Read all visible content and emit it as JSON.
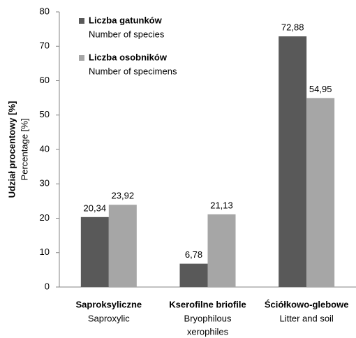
{
  "chart_data": {
    "type": "bar",
    "ylabel": "Udział procentowy [%]",
    "ylabel_en": "Percentage [%]",
    "categories": [
      "Saproksyliczne",
      "Kserofilne briofile",
      "Ściółkowo-glebowe"
    ],
    "categories_en": [
      [
        "Saproxylic"
      ],
      [
        "Bryophilous",
        "xerophiles"
      ],
      [
        "Litter and soil"
      ]
    ],
    "series": [
      {
        "name": "Liczba gatunków",
        "name_en": "Number of species",
        "color": "#595959",
        "values": [
          20.34,
          6.78,
          72.88
        ],
        "value_labels": [
          "20,34",
          "6,78",
          "72,88"
        ]
      },
      {
        "name": "Liczba osobników",
        "name_en": "Number of specimens",
        "color": "#a6a6a6",
        "values": [
          23.92,
          21.13,
          54.95
        ],
        "value_labels": [
          "23,92",
          "21,13",
          "54,95"
        ]
      }
    ],
    "ylim": [
      0,
      80
    ],
    "yticks": [
      0,
      10,
      20,
      30,
      40,
      50,
      60,
      70,
      80
    ],
    "grid": false,
    "legend": "upper left"
  }
}
